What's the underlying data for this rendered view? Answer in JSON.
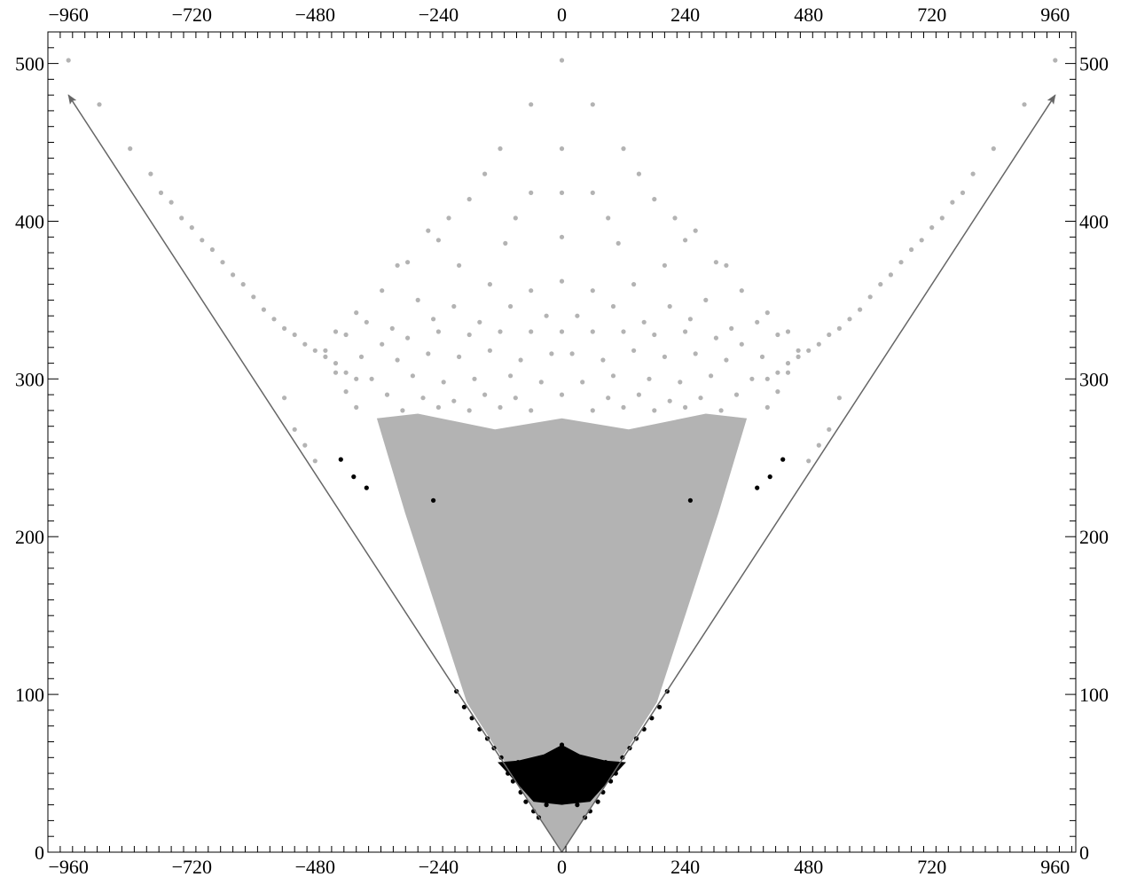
{
  "chart_data": {
    "type": "scatter",
    "title": "",
    "xlabel": "",
    "ylabel": "",
    "xlim": [
      -1000,
      1000
    ],
    "ylim": [
      0,
      520
    ],
    "x_ticks": [
      -960,
      -720,
      -480,
      -240,
      0,
      240,
      480,
      720,
      960
    ],
    "x_tick_labels": [
      "−960",
      "−720",
      "−480",
      "−240",
      "0",
      "240",
      "480",
      "720",
      "960"
    ],
    "y_ticks": [
      0,
      100,
      200,
      300,
      400,
      500
    ],
    "y_tick_labels": [
      "0",
      "100",
      "200",
      "300",
      "400",
      "500"
    ],
    "grid": false,
    "legend": null,
    "colors": {
      "gray": "#b3b3b3",
      "black": "#000000",
      "arrow": "#666666",
      "frame": "#000000"
    },
    "arrows": [
      {
        "from": [
          0,
          0
        ],
        "to": [
          -960,
          480
        ]
      },
      {
        "from": [
          0,
          0
        ],
        "to": [
          960,
          480
        ]
      }
    ],
    "regions": [
      {
        "name": "gray dense region",
        "color": "gray",
        "boundary": [
          [
            0,
            0
          ],
          [
            -185,
            95
          ],
          [
            -305,
            215
          ],
          [
            -360,
            275
          ],
          [
            -280,
            278
          ],
          [
            -130,
            268
          ],
          [
            0,
            275
          ],
          [
            130,
            268
          ],
          [
            280,
            278
          ],
          [
            360,
            275
          ],
          [
            305,
            215
          ],
          [
            185,
            95
          ]
        ]
      },
      {
        "name": "black core region",
        "color": "black",
        "boundary": [
          [
            0,
            30
          ],
          [
            -55,
            32
          ],
          [
            -105,
            50
          ],
          [
            -125,
            57
          ],
          [
            -85,
            58
          ],
          [
            -35,
            62
          ],
          [
            0,
            68
          ],
          [
            35,
            62
          ],
          [
            85,
            58
          ],
          [
            125,
            57
          ],
          [
            105,
            50
          ],
          [
            55,
            32
          ]
        ]
      }
    ],
    "series": [
      {
        "color": "gray",
        "points": [
          [
            -960,
            502
          ],
          [
            -900,
            474
          ],
          [
            -840,
            446
          ],
          [
            -800,
            430
          ],
          [
            -780,
            418
          ],
          [
            -760,
            412
          ],
          [
            -740,
            402
          ],
          [
            -720,
            396
          ],
          [
            -700,
            388
          ],
          [
            -680,
            382
          ],
          [
            -660,
            374
          ],
          [
            -640,
            366
          ],
          [
            -620,
            360
          ],
          [
            -600,
            352
          ],
          [
            -580,
            344
          ],
          [
            -560,
            338
          ],
          [
            -540,
            332
          ],
          [
            -520,
            328
          ],
          [
            -500,
            322
          ],
          [
            -480,
            318
          ],
          [
            -460,
            314
          ],
          [
            -440,
            310
          ],
          [
            -420,
            304
          ],
          [
            -400,
            300
          ],
          [
            960,
            502
          ],
          [
            900,
            474
          ],
          [
            840,
            446
          ],
          [
            800,
            430
          ],
          [
            780,
            418
          ],
          [
            760,
            412
          ],
          [
            740,
            402
          ],
          [
            720,
            396
          ],
          [
            700,
            388
          ],
          [
            680,
            382
          ],
          [
            660,
            374
          ],
          [
            640,
            366
          ],
          [
            620,
            360
          ],
          [
            600,
            352
          ],
          [
            580,
            344
          ],
          [
            560,
            338
          ],
          [
            540,
            332
          ],
          [
            520,
            328
          ],
          [
            500,
            322
          ],
          [
            480,
            318
          ],
          [
            460,
            314
          ],
          [
            440,
            310
          ],
          [
            420,
            304
          ],
          [
            400,
            300
          ],
          [
            -540,
            288
          ],
          [
            -520,
            268
          ],
          [
            -500,
            258
          ],
          [
            -480,
            248
          ],
          [
            540,
            288
          ],
          [
            520,
            268
          ],
          [
            500,
            258
          ],
          [
            480,
            248
          ],
          [
            0,
            502
          ],
          [
            -60,
            474
          ],
          [
            60,
            474
          ],
          [
            -120,
            446
          ],
          [
            120,
            446
          ],
          [
            0,
            446
          ],
          [
            -150,
            430
          ],
          [
            150,
            430
          ],
          [
            -60,
            418
          ],
          [
            60,
            418
          ],
          [
            0,
            418
          ],
          [
            -180,
            414
          ],
          [
            180,
            414
          ],
          [
            -220,
            402
          ],
          [
            220,
            402
          ],
          [
            -90,
            402
          ],
          [
            90,
            402
          ],
          [
            0,
            390
          ],
          [
            -260,
            394
          ],
          [
            260,
            394
          ],
          [
            -240,
            388
          ],
          [
            240,
            388
          ],
          [
            -110,
            386
          ],
          [
            110,
            386
          ],
          [
            -320,
            372
          ],
          [
            -300,
            374
          ],
          [
            320,
            372
          ],
          [
            300,
            374
          ],
          [
            -200,
            372
          ],
          [
            200,
            372
          ],
          [
            -140,
            360
          ],
          [
            140,
            360
          ],
          [
            -60,
            356
          ],
          [
            60,
            356
          ],
          [
            0,
            362
          ],
          [
            -350,
            356
          ],
          [
            350,
            356
          ],
          [
            -280,
            350
          ],
          [
            280,
            350
          ],
          [
            -210,
            346
          ],
          [
            210,
            346
          ],
          [
            -100,
            346
          ],
          [
            100,
            346
          ],
          [
            -30,
            340
          ],
          [
            30,
            340
          ],
          [
            -400,
            342
          ],
          [
            400,
            342
          ],
          [
            -380,
            336
          ],
          [
            380,
            336
          ],
          [
            -330,
            332
          ],
          [
            330,
            332
          ],
          [
            -250,
            338
          ],
          [
            250,
            338
          ],
          [
            -160,
            336
          ],
          [
            160,
            336
          ],
          [
            -440,
            330
          ],
          [
            -420,
            328
          ],
          [
            440,
            330
          ],
          [
            420,
            328
          ],
          [
            -350,
            322
          ],
          [
            350,
            322
          ],
          [
            -300,
            326
          ],
          [
            300,
            326
          ],
          [
            -240,
            330
          ],
          [
            240,
            330
          ],
          [
            -180,
            328
          ],
          [
            180,
            328
          ],
          [
            -120,
            330
          ],
          [
            120,
            330
          ],
          [
            -60,
            330
          ],
          [
            60,
            330
          ],
          [
            0,
            330
          ],
          [
            -460,
            318
          ],
          [
            460,
            318
          ],
          [
            -390,
            314
          ],
          [
            390,
            314
          ],
          [
            -320,
            312
          ],
          [
            320,
            312
          ],
          [
            -260,
            316
          ],
          [
            260,
            316
          ],
          [
            -200,
            314
          ],
          [
            200,
            314
          ],
          [
            -140,
            318
          ],
          [
            140,
            318
          ],
          [
            -80,
            312
          ],
          [
            80,
            312
          ],
          [
            -20,
            316
          ],
          [
            20,
            316
          ],
          [
            -440,
            304
          ],
          [
            440,
            304
          ],
          [
            -370,
            300
          ],
          [
            370,
            300
          ],
          [
            -290,
            302
          ],
          [
            290,
            302
          ],
          [
            -230,
            298
          ],
          [
            230,
            298
          ],
          [
            -170,
            300
          ],
          [
            170,
            300
          ],
          [
            -100,
            302
          ],
          [
            100,
            302
          ],
          [
            -40,
            298
          ],
          [
            40,
            298
          ],
          [
            -420,
            292
          ],
          [
            420,
            292
          ],
          [
            -340,
            290
          ],
          [
            340,
            290
          ],
          [
            -270,
            288
          ],
          [
            270,
            288
          ],
          [
            -210,
            286
          ],
          [
            210,
            286
          ],
          [
            -150,
            290
          ],
          [
            150,
            290
          ],
          [
            -90,
            288
          ],
          [
            90,
            288
          ],
          [
            0,
            290
          ],
          [
            -400,
            282
          ],
          [
            400,
            282
          ],
          [
            -310,
            280
          ],
          [
            310,
            280
          ],
          [
            -240,
            282
          ],
          [
            240,
            282
          ],
          [
            -180,
            280
          ],
          [
            180,
            280
          ],
          [
            -120,
            282
          ],
          [
            120,
            282
          ],
          [
            -60,
            280
          ],
          [
            60,
            280
          ]
        ]
      },
      {
        "color": "black",
        "points": [
          [
            -430,
            249
          ],
          [
            -405,
            238
          ],
          [
            -380,
            231
          ],
          [
            -250,
            223
          ],
          [
            430,
            249
          ],
          [
            405,
            238
          ],
          [
            380,
            231
          ],
          [
            250,
            223
          ],
          [
            -205,
            102
          ],
          [
            -190,
            92
          ],
          [
            -175,
            85
          ],
          [
            -160,
            78
          ],
          [
            -145,
            72
          ],
          [
            -132,
            66
          ],
          [
            -118,
            60
          ],
          [
            -105,
            50
          ],
          [
            -95,
            45
          ],
          [
            -80,
            38
          ],
          [
            -70,
            32
          ],
          [
            -55,
            26
          ],
          [
            -45,
            22
          ],
          [
            -30,
            30
          ],
          [
            205,
            102
          ],
          [
            190,
            92
          ],
          [
            175,
            85
          ],
          [
            160,
            78
          ],
          [
            145,
            72
          ],
          [
            132,
            66
          ],
          [
            118,
            60
          ],
          [
            105,
            50
          ],
          [
            95,
            45
          ],
          [
            80,
            38
          ],
          [
            70,
            32
          ],
          [
            55,
            26
          ],
          [
            45,
            22
          ],
          [
            30,
            30
          ],
          [
            -85,
            57
          ],
          [
            85,
            57
          ],
          [
            -40,
            60
          ],
          [
            40,
            60
          ],
          [
            0,
            66
          ],
          [
            0,
            68
          ]
        ]
      }
    ]
  }
}
